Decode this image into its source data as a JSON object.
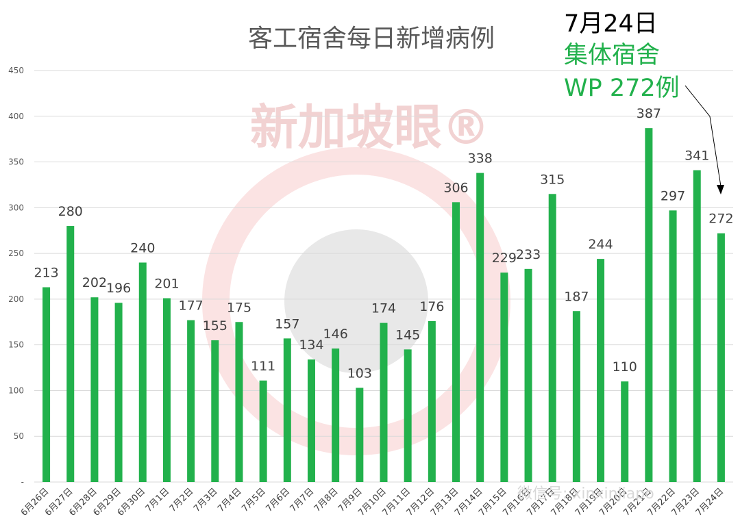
{
  "chart_data": {
    "type": "bar",
    "title": "客工宿舍每日新增病例",
    "categories": [
      "6月26日",
      "6月27日",
      "6月28日",
      "6月29日",
      "6月30日",
      "7月1日",
      "7月2日",
      "7月3日",
      "7月4日",
      "7月5日",
      "7月6日",
      "7月7日",
      "7月8日",
      "7月9日",
      "7月10日",
      "7月11日",
      "7月12日",
      "7月13日",
      "7月14日",
      "7月15日",
      "7月16日",
      "7月17日",
      "7月18日",
      "7月19日",
      "7月20日",
      "7月21日",
      "7月22日",
      "7月23日",
      "7月24日"
    ],
    "values": [
      213,
      280,
      202,
      196,
      240,
      201,
      177,
      155,
      175,
      111,
      157,
      134,
      146,
      103,
      174,
      145,
      176,
      306,
      338,
      229,
      233,
      315,
      187,
      244,
      110,
      387,
      297,
      341,
      272
    ],
    "ylim": [
      0,
      450
    ],
    "yticks": [
      0,
      50,
      100,
      150,
      200,
      250,
      300,
      350,
      400,
      450
    ],
    "ytick_labels": [
      "-",
      "50",
      "100",
      "150",
      "200",
      "250",
      "300",
      "350",
      "400",
      "450"
    ],
    "grid": true,
    "bar_color": "#22b14c",
    "xlabel": "",
    "ylabel": ""
  },
  "annotation": {
    "line1": "7月24日",
    "line2": "集体宿舍",
    "line3": "WP 272例",
    "color_dark": "#000000",
    "color_green": "#22b14c"
  },
  "watermark": {
    "text": "新加坡眼®",
    "wechat": "微信号: xinxinjiapo"
  }
}
